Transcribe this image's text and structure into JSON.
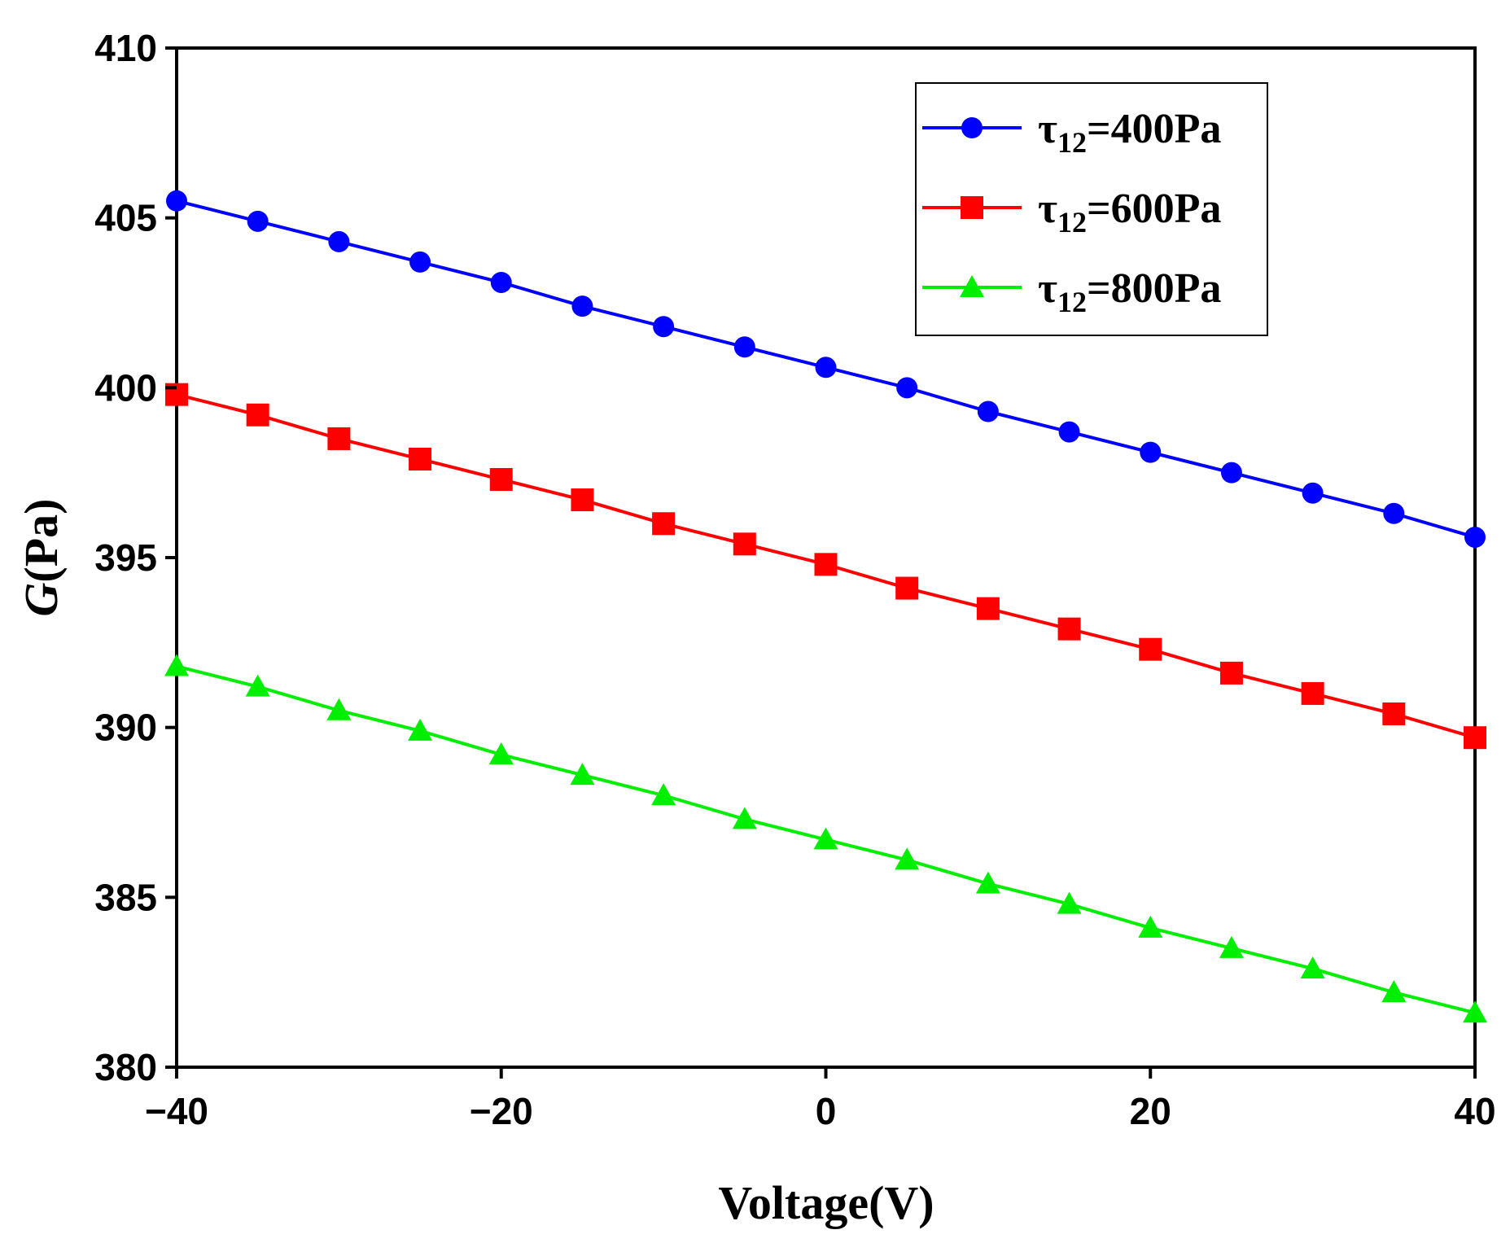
{
  "chart_data": {
    "type": "line",
    "xlabel": "Voltage(V)",
    "ylabel_italic": "G",
    "ylabel_rest": "(Pa)",
    "xlim": [
      -40,
      40
    ],
    "ylim": [
      380,
      410
    ],
    "xticks": [
      -40,
      -20,
      0,
      20,
      40
    ],
    "xtick_labels": [
      "−40",
      "−20",
      "0",
      "20",
      "40"
    ],
    "yticks": [
      380,
      385,
      390,
      395,
      400,
      405,
      410
    ],
    "ytick_labels": [
      "380",
      "385",
      "390",
      "395",
      "400",
      "405",
      "410"
    ],
    "grid": false,
    "legend_position": "top-right",
    "x": [
      -40,
      -35,
      -30,
      -25,
      -20,
      -15,
      -10,
      -5,
      0,
      5,
      10,
      15,
      20,
      25,
      30,
      35,
      40
    ],
    "series": [
      {
        "name": "τ12=400Pa",
        "legend_prefix": "τ",
        "legend_sub": "12",
        "legend_suffix": "=400Pa",
        "color": "#0000ff",
        "marker": "circle",
        "values": [
          405.5,
          404.9,
          404.3,
          403.7,
          403.1,
          402.4,
          401.8,
          401.2,
          400.6,
          400.0,
          399.3,
          398.7,
          398.1,
          397.5,
          396.9,
          396.3,
          395.6
        ]
      },
      {
        "name": "τ12=600Pa",
        "legend_prefix": "τ",
        "legend_sub": "12",
        "legend_suffix": "=600Pa",
        "color": "#ff0000",
        "marker": "square",
        "values": [
          399.8,
          399.2,
          398.5,
          397.9,
          397.3,
          396.7,
          396.0,
          395.4,
          394.8,
          394.1,
          393.5,
          392.9,
          392.3,
          391.6,
          391.0,
          390.4,
          389.7
        ]
      },
      {
        "name": "τ12=800Pa",
        "legend_prefix": "τ",
        "legend_sub": "12",
        "legend_suffix": "=800Pa",
        "color": "#00ee00",
        "marker": "triangle",
        "values": [
          391.8,
          391.2,
          390.5,
          389.9,
          389.2,
          388.6,
          388.0,
          387.3,
          386.7,
          386.1,
          385.4,
          384.8,
          384.1,
          383.5,
          382.9,
          382.2,
          381.6
        ]
      }
    ]
  }
}
